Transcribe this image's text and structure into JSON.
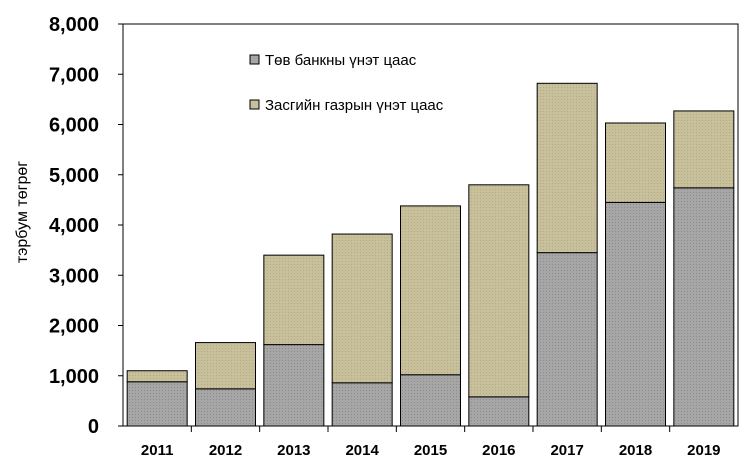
{
  "chart_data": {
    "type": "bar",
    "stacked": true,
    "categories": [
      "2011",
      "2012",
      "2013",
      "2014",
      "2015",
      "2016",
      "2017",
      "2018",
      "2019"
    ],
    "series": [
      {
        "name": "Төв банкны үнэт цаас",
        "color": "#a6a6a6",
        "values": [
          880,
          740,
          1620,
          860,
          1020,
          580,
          3450,
          4450,
          4740
        ]
      },
      {
        "name": "Засгийн газрын үнэт цаас",
        "color": "#c8bf9b",
        "values": [
          220,
          920,
          1780,
          2960,
          3360,
          4220,
          3370,
          1580,
          1530
        ]
      }
    ],
    "ylabel": "тэрбум төгрөг",
    "xlabel": "",
    "ylim": [
      0,
      8000
    ],
    "yticks": [
      0,
      1000,
      2000,
      3000,
      4000,
      5000,
      6000,
      7000,
      8000
    ],
    "ytick_labels": [
      "0",
      "1,000",
      "2,000",
      "3,000",
      "4,000",
      "5,000",
      "6,000",
      "7,000",
      "8,000"
    ],
    "grid": false,
    "legend_position": "top-left-inside"
  }
}
